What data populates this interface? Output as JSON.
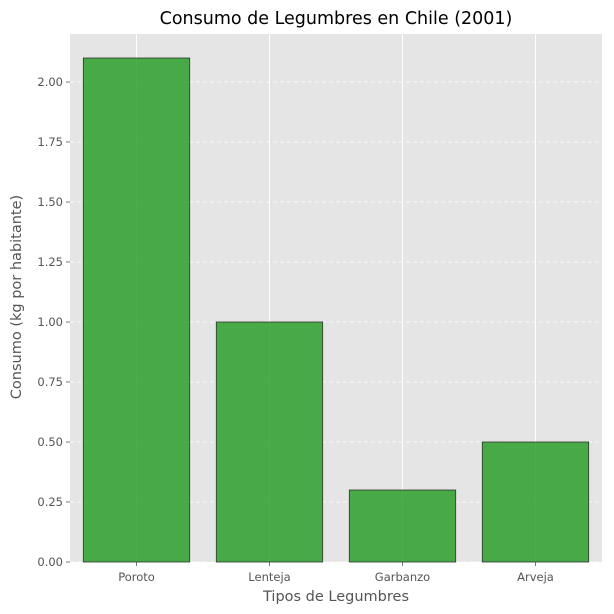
{
  "chart_data": {
    "type": "bar",
    "title": "Consumo de Legumbres en Chile (2001)",
    "xlabel": "Tipos de Legumbres",
    "ylabel": "Consumo (kg por habitante)",
    "categories": [
      "Poroto",
      "Lenteja",
      "Garbanzo",
      "Arveja"
    ],
    "values": [
      2.1,
      1.0,
      0.3,
      0.5
    ],
    "ylim": [
      0,
      2.2
    ],
    "yticks": [
      0.0,
      0.25,
      0.5,
      0.75,
      1.0,
      1.25,
      1.5,
      1.75,
      2.0
    ],
    "ytick_labels": [
      "0.00",
      "0.25",
      "0.50",
      "0.75",
      "1.00",
      "1.25",
      "1.50",
      "1.75",
      "2.00"
    ],
    "grid": true,
    "colors": {
      "bar_fill": "#2ca02c",
      "bar_edge": "#333333",
      "plot_background": "#e5e5e5",
      "grid": "#ffffff"
    }
  }
}
